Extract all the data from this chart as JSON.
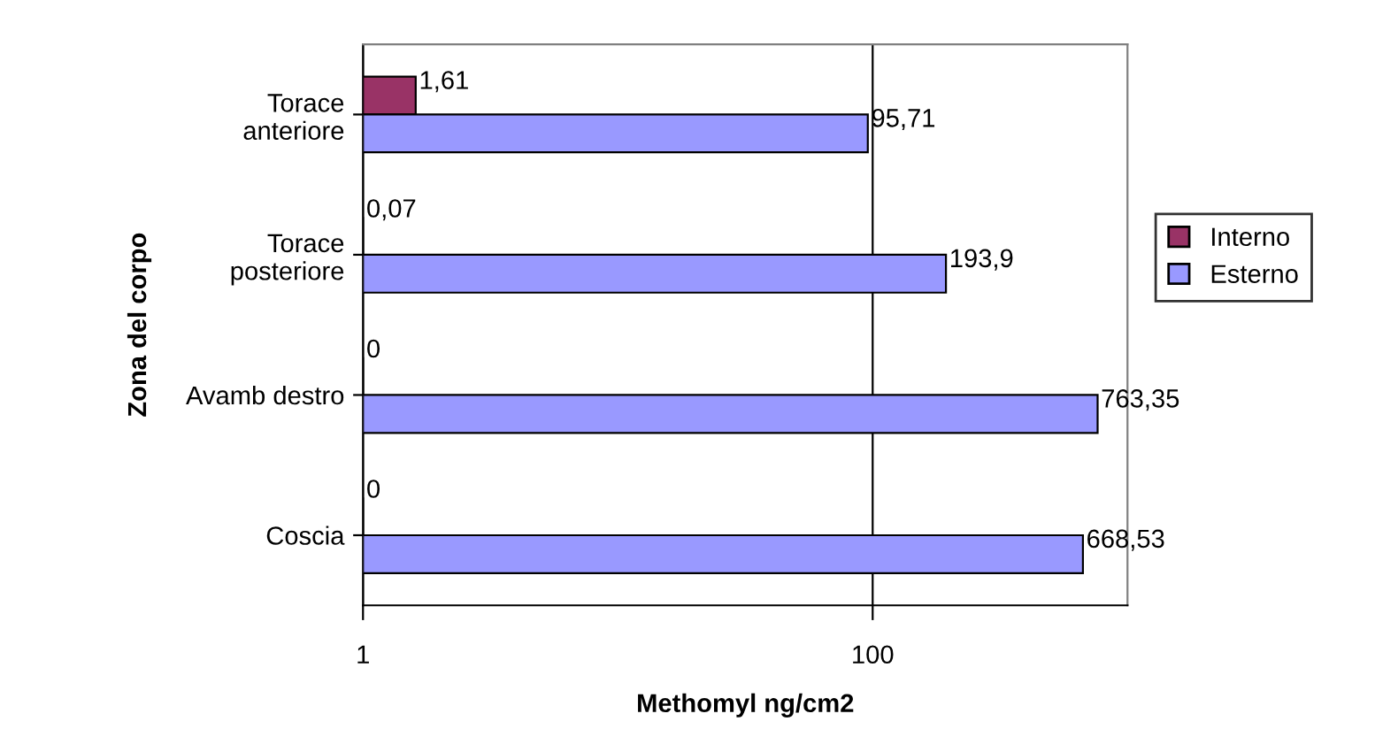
{
  "chart_data": {
    "type": "bar",
    "orientation": "horizontal",
    "log": "x",
    "categories": [
      "Torace\nanteriore",
      "Torace\nposteriore",
      "Avamb destro",
      "Coscia"
    ],
    "series": [
      {
        "name": "Interno",
        "color": "#993366",
        "values": [
          1.61,
          null,
          null,
          null
        ],
        "value_labels": [
          "1,61",
          "0,07",
          "0",
          "0"
        ]
      },
      {
        "name": "Esterno",
        "color": "#9999ff",
        "values": [
          95.71,
          193.9,
          763.35,
          668.53
        ],
        "value_labels": [
          "95,71",
          "193,9",
          "763,35",
          "668,53"
        ]
      }
    ],
    "xlabel": "Methomyl ng/cm2",
    "ylabel": "Zona del corpo",
    "xlim": [
      1,
      1000
    ],
    "xticks": [
      1,
      100
    ],
    "grid": "x",
    "legend": "right"
  }
}
